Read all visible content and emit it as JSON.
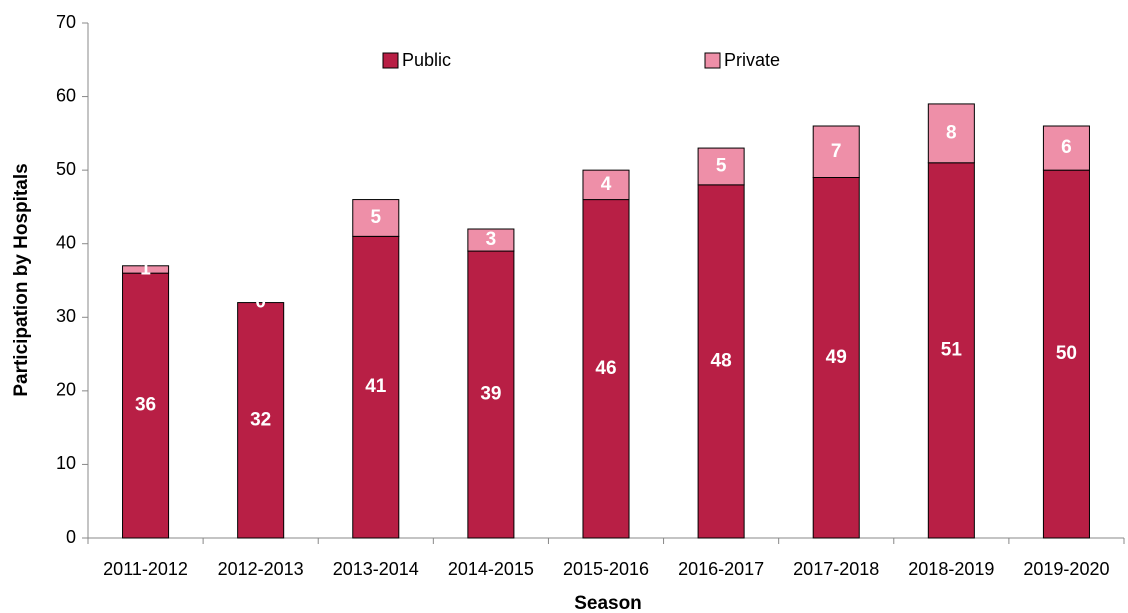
{
  "chart_data": {
    "type": "stacked_bar",
    "x_label": "Season",
    "y_label": "Participation by Hospitals",
    "categories": [
      "2011-2012",
      "2012-2013",
      "2013-2014",
      "2014-2015",
      "2015-2016",
      "2016-2017",
      "2017-2018",
      "2018-2019",
      "2019-2020"
    ],
    "series": [
      {
        "name": "Public",
        "color": "#b81f45",
        "values": [
          36,
          32,
          41,
          39,
          46,
          48,
          49,
          51,
          50
        ]
      },
      {
        "name": "Private",
        "color": "#ee8fa8",
        "values": [
          1,
          0,
          5,
          3,
          4,
          5,
          7,
          8,
          6
        ]
      }
    ],
    "ylim": [
      0,
      70
    ],
    "yticks": [
      0,
      10,
      20,
      30,
      40,
      50,
      60,
      70
    ],
    "legend": "top",
    "grid": false
  }
}
